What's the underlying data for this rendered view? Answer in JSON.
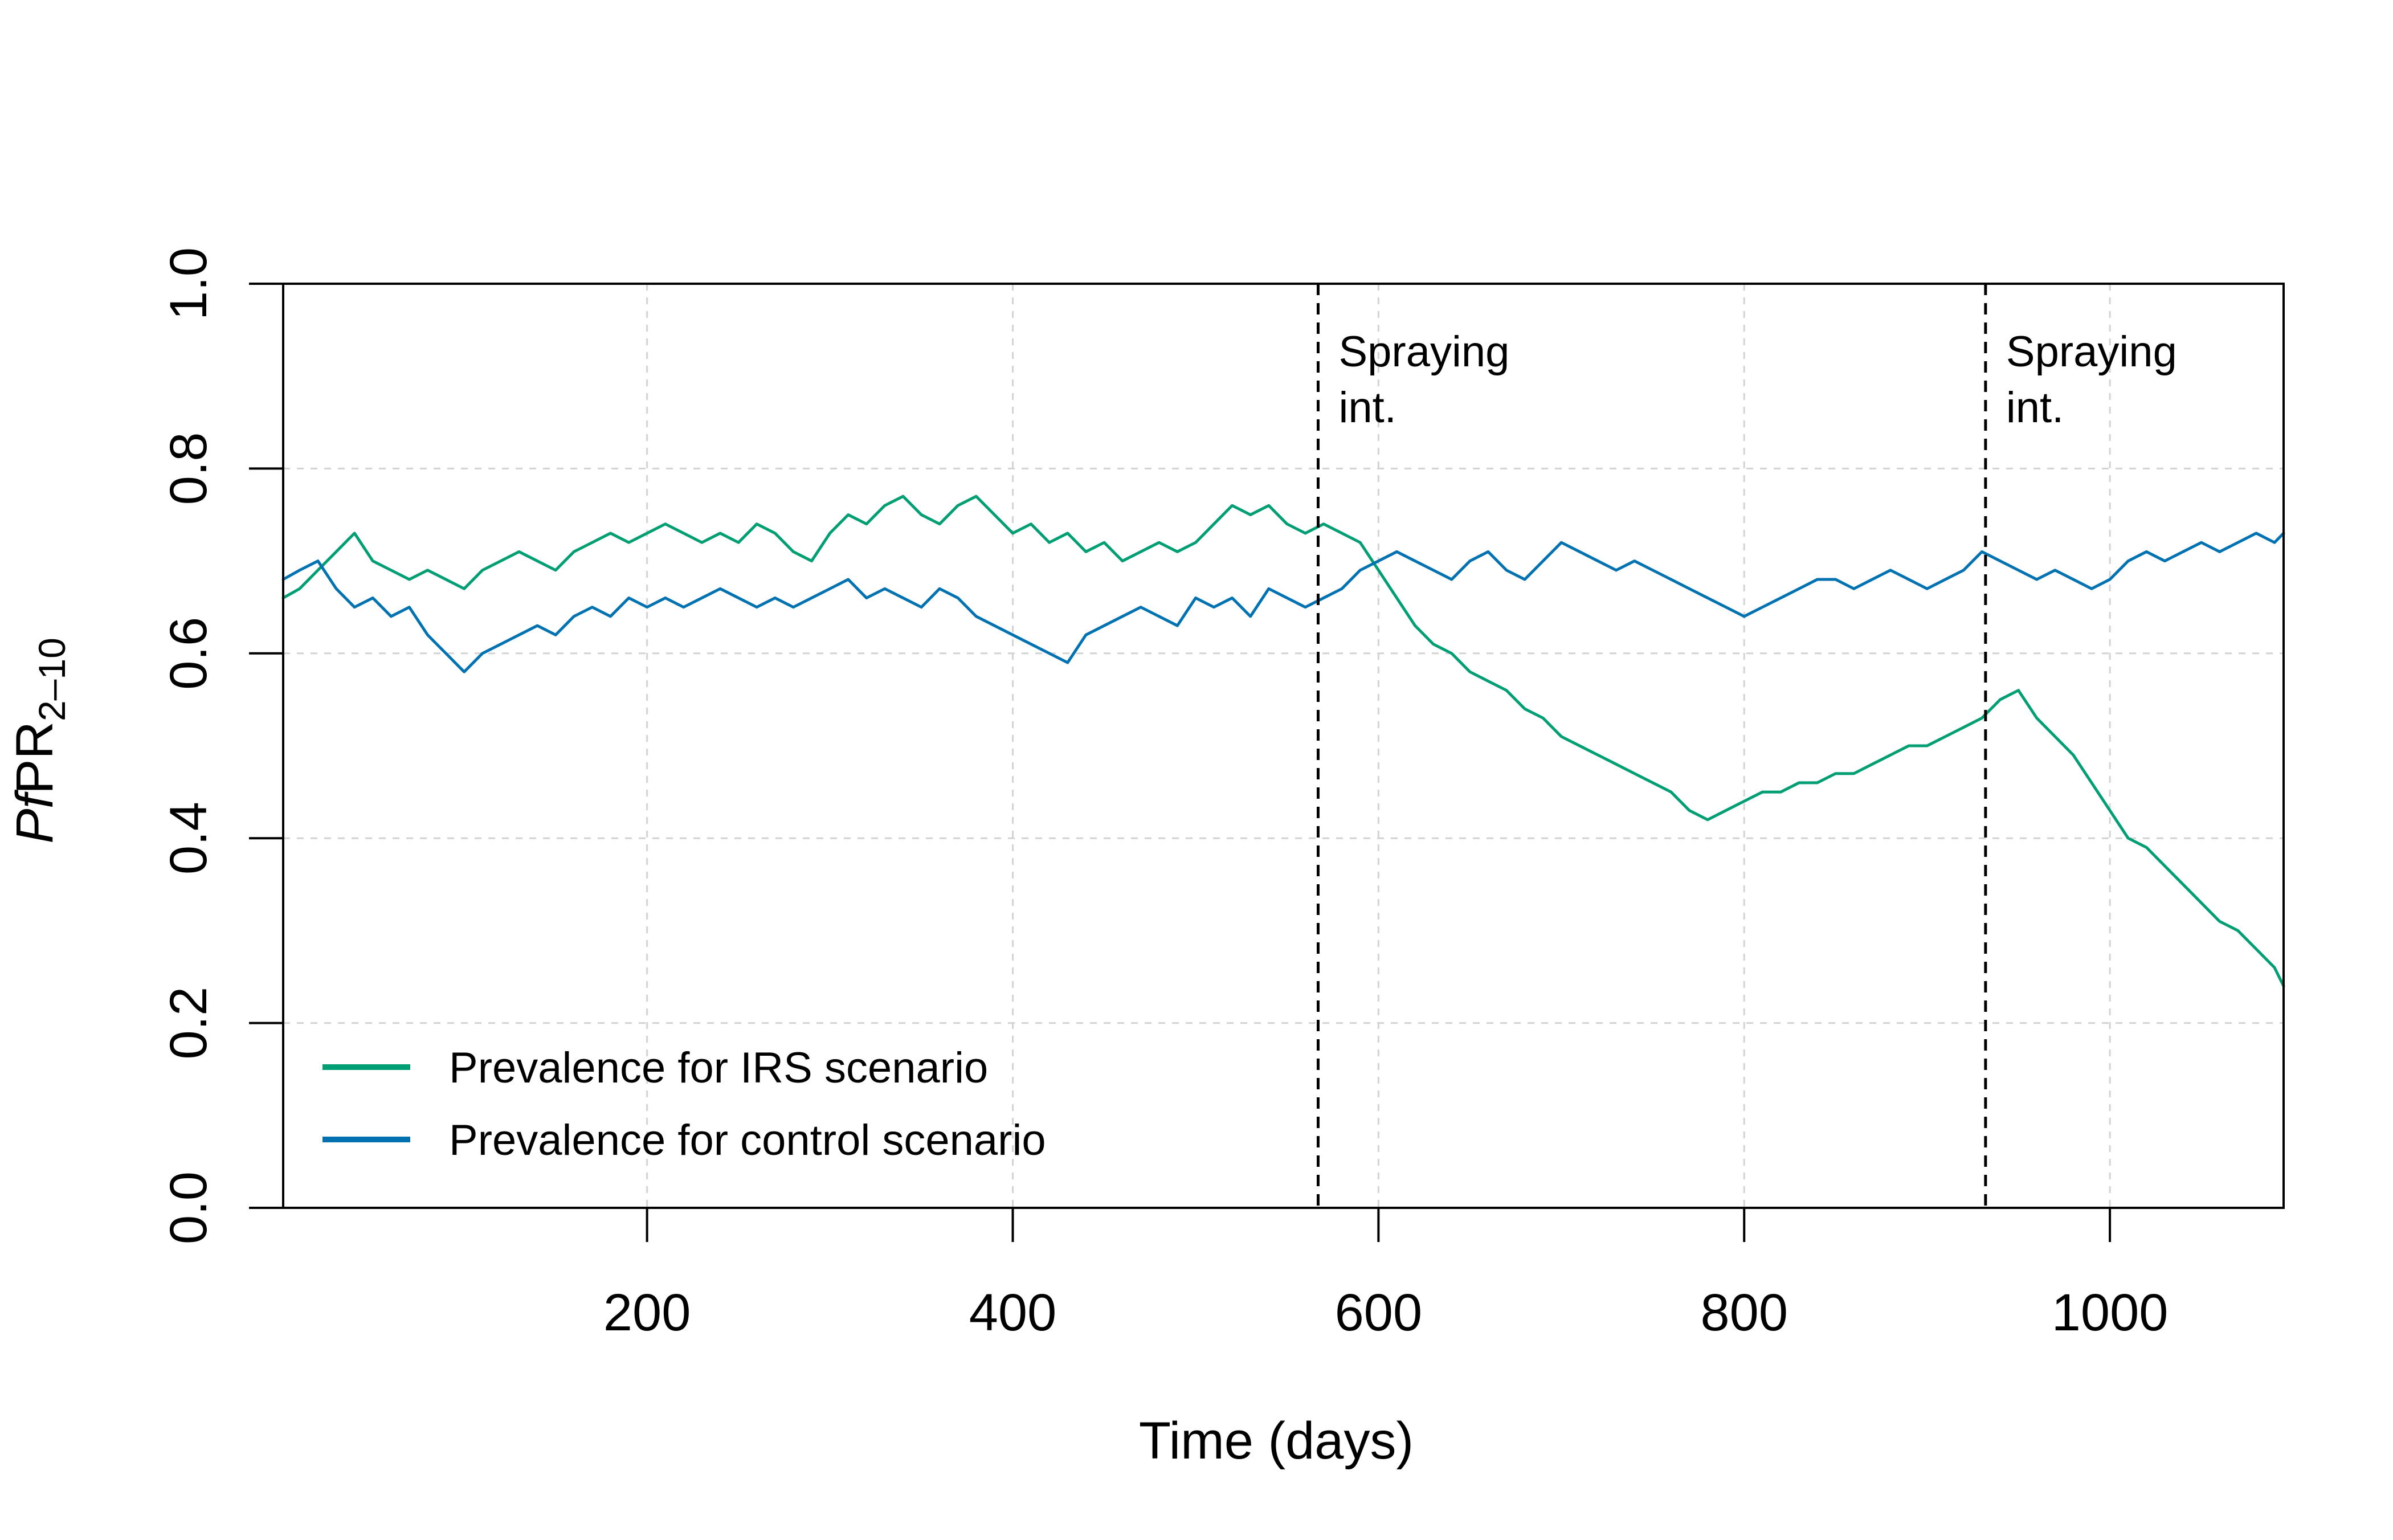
{
  "chart_data": {
    "type": "line",
    "title": "",
    "xlabel": "Time (days)",
    "ylabel": {
      "italic": "Pf",
      "main": "PR",
      "sub": "2–10"
    },
    "xlim": [
      1,
      1095
    ],
    "ylim": [
      0,
      1
    ],
    "xticks": [
      200,
      400,
      600,
      800,
      1000
    ],
    "xtick_labels": [
      "200",
      "400",
      "600",
      "800",
      "1000"
    ],
    "yticks": [
      0,
      0.2,
      0.4,
      0.6,
      0.8,
      1.0
    ],
    "ytick_labels": [
      "0.0",
      "0.2",
      "0.4",
      "0.6",
      "0.8",
      "1.0"
    ],
    "grid": true,
    "legend_position": "bottom-left",
    "series": [
      {
        "name": "Prevalence for IRS scenario",
        "color": "#009E73",
        "x": [
          1,
          10,
          20,
          30,
          40,
          50,
          60,
          70,
          80,
          90,
          100,
          110,
          120,
          130,
          140,
          150,
          160,
          170,
          180,
          190,
          200,
          210,
          220,
          230,
          240,
          250,
          260,
          270,
          280,
          290,
          300,
          310,
          320,
          330,
          340,
          350,
          360,
          370,
          380,
          390,
          400,
          410,
          420,
          430,
          440,
          450,
          460,
          470,
          480,
          490,
          500,
          510,
          520,
          530,
          540,
          550,
          560,
          570,
          580,
          590,
          600,
          610,
          620,
          630,
          640,
          650,
          660,
          670,
          680,
          690,
          700,
          710,
          720,
          730,
          740,
          750,
          760,
          770,
          780,
          790,
          800,
          810,
          820,
          830,
          840,
          850,
          860,
          870,
          880,
          890,
          900,
          910,
          920,
          930,
          940,
          950,
          960,
          970,
          980,
          990,
          1000,
          1010,
          1020,
          1030,
          1040,
          1050,
          1060,
          1070,
          1080,
          1090,
          1095
        ],
        "y": [
          0.66,
          0.67,
          0.69,
          0.71,
          0.73,
          0.7,
          0.69,
          0.68,
          0.69,
          0.68,
          0.67,
          0.69,
          0.7,
          0.71,
          0.7,
          0.69,
          0.71,
          0.72,
          0.73,
          0.72,
          0.73,
          0.74,
          0.73,
          0.72,
          0.73,
          0.72,
          0.74,
          0.73,
          0.71,
          0.7,
          0.73,
          0.75,
          0.74,
          0.76,
          0.77,
          0.75,
          0.74,
          0.76,
          0.77,
          0.75,
          0.73,
          0.74,
          0.72,
          0.73,
          0.71,
          0.72,
          0.7,
          0.71,
          0.72,
          0.71,
          0.72,
          0.74,
          0.76,
          0.75,
          0.76,
          0.74,
          0.73,
          0.74,
          0.73,
          0.72,
          0.69,
          0.66,
          0.63,
          0.61,
          0.6,
          0.58,
          0.57,
          0.56,
          0.54,
          0.53,
          0.51,
          0.5,
          0.49,
          0.48,
          0.47,
          0.46,
          0.45,
          0.43,
          0.42,
          0.43,
          0.44,
          0.45,
          0.45,
          0.46,
          0.46,
          0.47,
          0.47,
          0.48,
          0.49,
          0.5,
          0.5,
          0.51,
          0.52,
          0.53,
          0.55,
          0.56,
          0.53,
          0.51,
          0.49,
          0.46,
          0.43,
          0.4,
          0.39,
          0.37,
          0.35,
          0.33,
          0.31,
          0.3,
          0.28,
          0.26,
          0.24
        ]
      },
      {
        "name": "Prevalence for control scenario",
        "color": "#0072B2",
        "x": [
          1,
          10,
          20,
          30,
          40,
          50,
          60,
          70,
          80,
          90,
          100,
          110,
          120,
          130,
          140,
          150,
          160,
          170,
          180,
          190,
          200,
          210,
          220,
          230,
          240,
          250,
          260,
          270,
          280,
          290,
          300,
          310,
          320,
          330,
          340,
          350,
          360,
          370,
          380,
          390,
          400,
          410,
          420,
          430,
          440,
          450,
          460,
          470,
          480,
          490,
          500,
          510,
          520,
          530,
          540,
          550,
          560,
          570,
          580,
          590,
          600,
          610,
          620,
          630,
          640,
          650,
          660,
          670,
          680,
          690,
          700,
          710,
          720,
          730,
          740,
          750,
          760,
          770,
          780,
          790,
          800,
          810,
          820,
          830,
          840,
          850,
          860,
          870,
          880,
          890,
          900,
          910,
          920,
          930,
          940,
          950,
          960,
          970,
          980,
          990,
          1000,
          1010,
          1020,
          1030,
          1040,
          1050,
          1060,
          1070,
          1080,
          1090,
          1095
        ],
        "y": [
          0.68,
          0.69,
          0.7,
          0.67,
          0.65,
          0.66,
          0.64,
          0.65,
          0.62,
          0.6,
          0.58,
          0.6,
          0.61,
          0.62,
          0.63,
          0.62,
          0.64,
          0.65,
          0.64,
          0.66,
          0.65,
          0.66,
          0.65,
          0.66,
          0.67,
          0.66,
          0.65,
          0.66,
          0.65,
          0.66,
          0.67,
          0.68,
          0.66,
          0.67,
          0.66,
          0.65,
          0.67,
          0.66,
          0.64,
          0.63,
          0.62,
          0.61,
          0.6,
          0.59,
          0.62,
          0.63,
          0.64,
          0.65,
          0.64,
          0.63,
          0.66,
          0.65,
          0.66,
          0.64,
          0.67,
          0.66,
          0.65,
          0.66,
          0.67,
          0.69,
          0.7,
          0.71,
          0.7,
          0.69,
          0.68,
          0.7,
          0.71,
          0.69,
          0.68,
          0.7,
          0.72,
          0.71,
          0.7,
          0.69,
          0.7,
          0.69,
          0.68,
          0.67,
          0.66,
          0.65,
          0.64,
          0.65,
          0.66,
          0.67,
          0.68,
          0.68,
          0.67,
          0.68,
          0.69,
          0.68,
          0.67,
          0.68,
          0.69,
          0.71,
          0.7,
          0.69,
          0.68,
          0.69,
          0.68,
          0.67,
          0.68,
          0.7,
          0.71,
          0.7,
          0.71,
          0.72,
          0.71,
          0.72,
          0.73,
          0.72,
          0.73
        ]
      }
    ],
    "vlines": [
      {
        "x": 567,
        "label_lines": [
          "Spraying",
          "int."
        ]
      },
      {
        "x": 932,
        "label_lines": [
          "Spraying",
          "int."
        ]
      }
    ]
  }
}
